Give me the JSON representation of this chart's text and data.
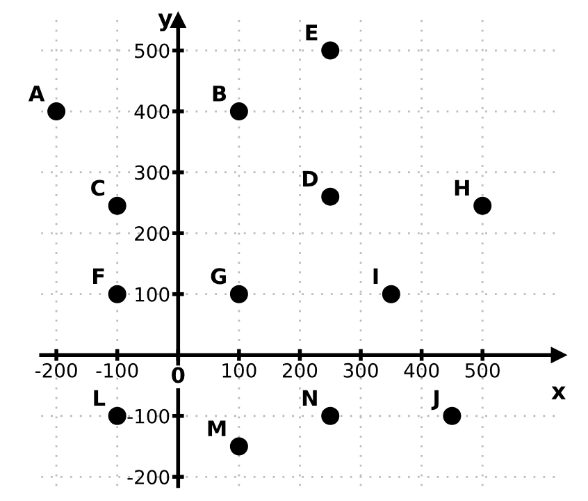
{
  "chart_data": {
    "type": "scatter",
    "xlabel": "x",
    "ylabel": "y",
    "x": [
      -200,
      100,
      -100,
      250,
      250,
      -100,
      100,
      500,
      350,
      450,
      -100,
      100,
      250
    ],
    "series": [
      {
        "color": "#000000",
        "values": [
          400,
          400,
          245,
          260,
          500,
          100,
          100,
          245,
          100,
          -100,
          -100,
          -150,
          -100
        ]
      }
    ],
    "annotations": [
      {
        "text": "A",
        "x": -200,
        "y": 400
      },
      {
        "text": "B",
        "x": 100,
        "y": 400
      },
      {
        "text": "C",
        "x": -100,
        "y": 245
      },
      {
        "text": "D",
        "x": 250,
        "y": 260
      },
      {
        "text": "E",
        "x": 250,
        "y": 500
      },
      {
        "text": "F",
        "x": -100,
        "y": 100
      },
      {
        "text": "G",
        "x": 100,
        "y": 100
      },
      {
        "text": "H",
        "x": 500,
        "y": 245
      },
      {
        "text": "I",
        "x": 350,
        "y": 100
      },
      {
        "text": "J",
        "x": 450,
        "y": -100
      },
      {
        "text": "L",
        "x": -100,
        "y": -100
      },
      {
        "text": "M",
        "x": 100,
        "y": -150
      },
      {
        "text": "N",
        "x": 250,
        "y": -100
      }
    ],
    "xlim": [
      -225,
      625
    ],
    "ylim": [
      -215,
      550
    ],
    "xticks": [
      -200,
      -100,
      {
        "value": 0,
        "label": "0"
      },
      100,
      200,
      300,
      400,
      500
    ],
    "yticks": [
      -200,
      -100,
      100,
      200,
      300,
      400,
      500
    ],
    "grid": true,
    "marker": "circle"
  }
}
